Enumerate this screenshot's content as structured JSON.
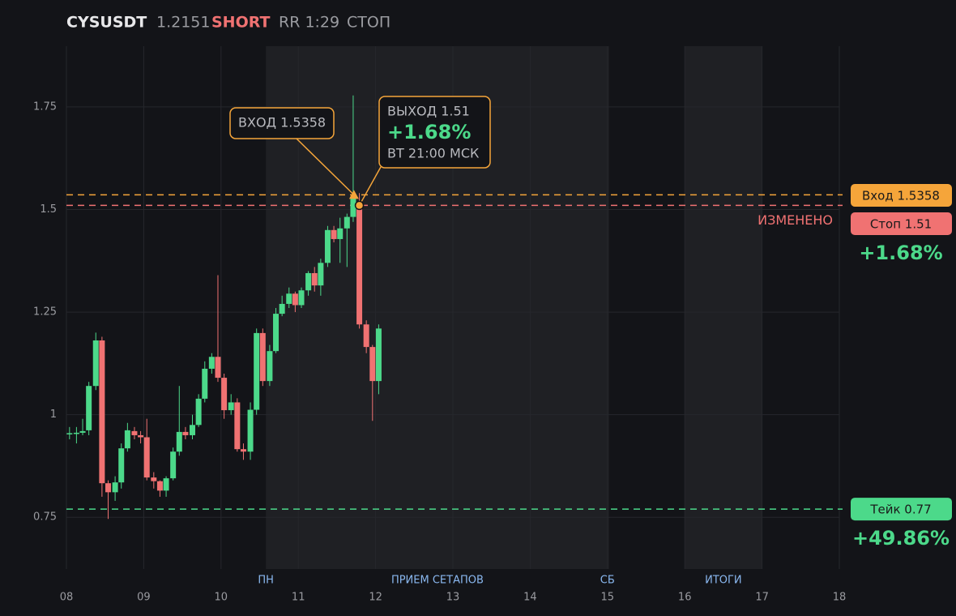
{
  "header": {
    "symbol": "CYSUSDT",
    "price": 1.2151,
    "side": "SHORT",
    "rr": "RR 1:29",
    "status": "СТОП"
  },
  "chart_data": {
    "type": "candlestick",
    "x": [
      8.04,
      8.13,
      8.21,
      8.29,
      8.38,
      8.46,
      8.54,
      8.63,
      8.71,
      8.79,
      8.88,
      8.96,
      9.04,
      9.13,
      9.21,
      9.29,
      9.38,
      9.46,
      9.54,
      9.63,
      9.71,
      9.79,
      9.88,
      9.96,
      10.04,
      10.13,
      10.21,
      10.29,
      10.38,
      10.46,
      10.54,
      10.63,
      10.71,
      10.79,
      10.88,
      10.96,
      11.04,
      11.13,
      11.21,
      11.29,
      11.38,
      11.46,
      11.54,
      11.63,
      11.71,
      11.79,
      11.88,
      11.96,
      12.04
    ],
    "open": [
      0.952,
      0.953,
      0.956,
      0.962,
      1.07,
      1.181,
      0.833,
      0.811,
      0.835,
      0.918,
      0.96,
      0.95,
      0.945,
      0.847,
      0.838,
      0.815,
      0.845,
      0.91,
      0.958,
      0.95,
      0.975,
      1.039,
      1.112,
      1.141,
      1.09,
      1.011,
      1.03,
      0.916,
      0.91,
      1.012,
      1.199,
      1.082,
      1.155,
      1.246,
      1.27,
      1.295,
      1.267,
      1.303,
      1.345,
      1.315,
      1.37,
      1.45,
      1.428,
      1.454,
      1.482,
      1.519,
      1.22,
      1.165,
      1.082
    ],
    "high": [
      0.97,
      0.97,
      0.99,
      1.08,
      1.2,
      1.19,
      0.84,
      0.85,
      0.93,
      0.98,
      0.97,
      0.96,
      0.99,
      0.86,
      0.84,
      0.85,
      0.92,
      1.07,
      0.97,
      1.0,
      1.05,
      1.13,
      1.15,
      1.34,
      1.1,
      1.05,
      1.04,
      0.93,
      1.03,
      1.21,
      1.21,
      1.17,
      1.26,
      1.29,
      1.31,
      1.3,
      1.31,
      1.35,
      1.36,
      1.38,
      1.46,
      1.46,
      1.48,
      1.49,
      1.778,
      1.54,
      1.23,
      1.17,
      1.22
    ],
    "low": [
      0.94,
      0.93,
      0.95,
      0.95,
      1.06,
      0.8,
      0.746,
      0.79,
      0.82,
      0.91,
      0.94,
      0.93,
      0.84,
      0.82,
      0.8,
      0.8,
      0.84,
      0.9,
      0.94,
      0.94,
      0.97,
      1.03,
      1.1,
      1.08,
      0.99,
      1.0,
      0.91,
      0.89,
      0.89,
      1.0,
      1.07,
      1.07,
      1.15,
      1.24,
      1.26,
      1.25,
      1.26,
      1.29,
      1.3,
      1.29,
      1.36,
      1.42,
      1.37,
      1.36,
      1.47,
      1.21,
      1.15,
      0.985,
      1.05
    ],
    "close": [
      0.955,
      0.956,
      0.96,
      1.07,
      1.181,
      0.833,
      0.811,
      0.835,
      0.918,
      0.962,
      0.95,
      0.945,
      0.847,
      0.838,
      0.815,
      0.845,
      0.91,
      0.958,
      0.95,
      0.975,
      1.039,
      1.112,
      1.141,
      1.09,
      1.011,
      1.03,
      0.916,
      0.91,
      1.012,
      1.199,
      1.082,
      1.155,
      1.246,
      1.27,
      1.295,
      1.267,
      1.303,
      1.345,
      1.315,
      1.37,
      1.45,
      1.428,
      1.454,
      1.482,
      1.531,
      1.22,
      1.165,
      1.082,
      1.21
    ],
    "up_color": "#4cd98a",
    "down_color": "#f07272",
    "xlim": [
      8,
      18
    ],
    "xticks": [
      {
        "value": 8,
        "label": "08"
      },
      {
        "value": 9,
        "label": "09"
      },
      10,
      11,
      12,
      13,
      14,
      15,
      16,
      17,
      18
    ],
    "ylim": [
      0.624,
      1.898
    ],
    "yticks": [
      0.75,
      1,
      1.25,
      1.5,
      1.75
    ],
    "grid": true,
    "sessions": [
      {
        "start": 10.58,
        "end": 15.02
      },
      {
        "start": 16,
        "end": 17
      }
    ],
    "session_labels": [
      {
        "x": 10.58,
        "label": "ПН"
      },
      {
        "x": 12.8,
        "label": "ПРИЕМ СЕТАПОВ"
      },
      {
        "x": 15.0,
        "label": "СБ"
      },
      {
        "x": 16.5,
        "label": "ИТОГИ"
      }
    ],
    "levels": [
      {
        "value": 1.5358,
        "label": "Вход 1.5358",
        "color": "#f5a53a"
      },
      {
        "value": 1.51,
        "label": "Стоп 1.51",
        "color": "#f07272",
        "note": "ИЗМЕНЕНО",
        "pnl": "+1.68%"
      },
      {
        "value": 0.77,
        "label": "Тейк 0.77",
        "color": "#4cd98a",
        "pnl": "+49.86%"
      }
    ],
    "annotations": [
      {
        "x": 11.72,
        "y": 1.5358,
        "marker": "triangle",
        "lines": [
          "ВХОД 1.5358"
        ]
      },
      {
        "x": 11.79,
        "y": 1.51,
        "marker": "circle",
        "lines": [
          "ВЫХОД 1.51",
          "+1.68%",
          "ВТ 21:00 МСК"
        ]
      }
    ]
  }
}
